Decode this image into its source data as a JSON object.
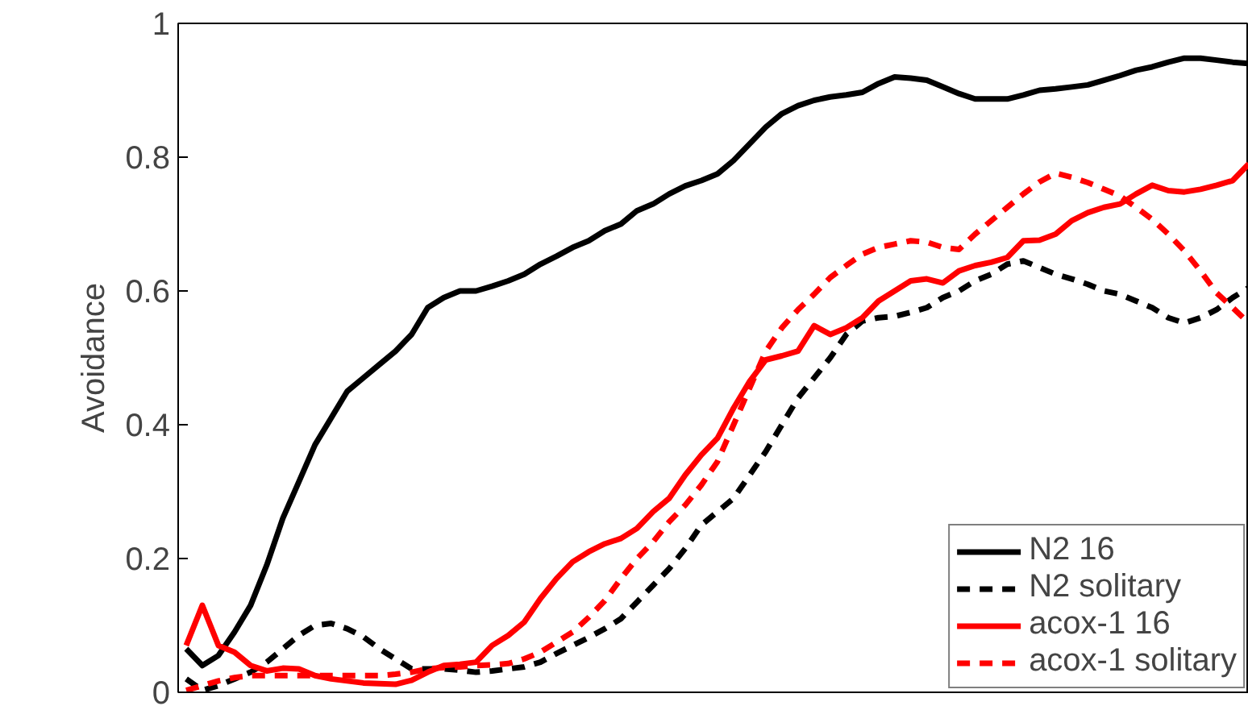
{
  "chart_data": {
    "type": "line",
    "ylabel": "Avoidance",
    "ylim": [
      0,
      1
    ],
    "yticks": [
      0,
      0.2,
      0.4,
      0.6,
      0.8,
      1
    ],
    "grid": false,
    "legend": "bottom right",
    "categories": [
      null,
      null,
      null,
      null,
      null,
      null,
      null,
      null,
      null,
      null,
      null,
      null,
      null,
      null,
      null,
      null,
      null,
      null,
      null,
      null,
      null,
      null,
      null,
      null,
      null,
      null,
      null,
      null,
      null,
      null,
      null,
      null,
      null,
      null,
      null,
      null,
      null,
      null,
      null,
      null,
      null,
      null,
      null,
      null,
      null,
      null,
      null,
      null,
      null,
      null,
      null,
      null,
      null,
      null,
      null,
      null,
      null,
      null,
      null,
      null,
      null,
      null,
      null,
      null,
      null,
      null,
      null
    ],
    "series": [
      {
        "name": "N2 16",
        "color": "#000000",
        "line_style": "solid",
        "values": [
          0.065,
          0.04,
          0.055,
          0.09,
          0.13,
          0.19,
          0.26,
          0.315,
          0.37,
          0.41,
          0.45,
          0.47,
          0.49,
          0.51,
          0.535,
          0.575,
          0.59,
          0.6,
          0.6,
          0.607,
          0.615,
          0.625,
          0.64,
          0.652,
          0.665,
          0.675,
          0.69,
          0.7,
          0.72,
          0.73,
          0.745,
          0.757,
          0.765,
          0.775,
          0.795,
          0.82,
          0.845,
          0.865,
          0.877,
          0.885,
          0.89,
          0.893,
          0.897,
          0.91,
          0.92,
          0.918,
          0.915,
          0.905,
          0.895,
          0.887,
          0.887,
          0.887,
          0.893,
          0.9,
          0.902,
          0.905,
          0.908,
          0.915,
          0.922,
          0.93,
          0.935,
          0.942,
          0.948,
          0.948,
          0.945,
          0.942,
          0.94
        ]
      },
      {
        "name": "N2 solitary",
        "color": "#000000",
        "line_style": "dashed",
        "values": [
          0.02,
          0.003,
          0.01,
          0.02,
          0.03,
          0.045,
          0.065,
          0.085,
          0.1,
          0.103,
          0.095,
          0.083,
          0.065,
          0.05,
          0.035,
          0.035,
          0.035,
          0.033,
          0.03,
          0.032,
          0.035,
          0.038,
          0.045,
          0.058,
          0.07,
          0.082,
          0.095,
          0.11,
          0.135,
          0.16,
          0.185,
          0.215,
          0.25,
          0.27,
          0.29,
          0.325,
          0.36,
          0.4,
          0.44,
          0.47,
          0.5,
          0.535,
          0.555,
          0.56,
          0.562,
          0.568,
          0.575,
          0.59,
          0.6,
          0.615,
          0.625,
          0.64,
          0.645,
          0.635,
          0.625,
          0.618,
          0.61,
          0.6,
          0.595,
          0.585,
          0.575,
          0.56,
          0.552,
          0.56,
          0.572,
          0.59,
          0.605
        ]
      },
      {
        "name": "acox-1 16",
        "color": "#ff0000",
        "line_style": "solid",
        "values": [
          0.07,
          0.13,
          0.07,
          0.06,
          0.04,
          0.032,
          0.036,
          0.035,
          0.025,
          0.02,
          0.017,
          0.014,
          0.013,
          0.012,
          0.018,
          0.03,
          0.04,
          0.042,
          0.045,
          0.07,
          0.085,
          0.105,
          0.14,
          0.17,
          0.195,
          0.21,
          0.222,
          0.23,
          0.245,
          0.27,
          0.29,
          0.325,
          0.355,
          0.38,
          0.425,
          0.465,
          0.497,
          0.503,
          0.51,
          0.548,
          0.535,
          0.545,
          0.56,
          0.585,
          0.6,
          0.615,
          0.618,
          0.612,
          0.63,
          0.638,
          0.643,
          0.65,
          0.675,
          0.676,
          0.685,
          0.705,
          0.717,
          0.725,
          0.73,
          0.745,
          0.758,
          0.75,
          0.748,
          0.752,
          0.758,
          0.765,
          0.79
        ]
      },
      {
        "name": "acox-1 solitary",
        "color": "#ff0000",
        "line_style": "dashed",
        "values": [
          0.003,
          0.01,
          0.017,
          0.022,
          0.025,
          0.025,
          0.025,
          0.025,
          0.025,
          0.025,
          0.025,
          0.025,
          0.025,
          0.027,
          0.03,
          0.035,
          0.037,
          0.038,
          0.04,
          0.041,
          0.043,
          0.05,
          0.06,
          0.075,
          0.09,
          0.112,
          0.137,
          0.17,
          0.2,
          0.225,
          0.255,
          0.28,
          0.31,
          0.345,
          0.4,
          0.455,
          0.51,
          0.545,
          0.572,
          0.595,
          0.62,
          0.638,
          0.655,
          0.665,
          0.67,
          0.675,
          0.673,
          0.665,
          0.662,
          0.685,
          0.705,
          0.725,
          0.745,
          0.763,
          0.776,
          0.77,
          0.762,
          0.752,
          0.742,
          0.725,
          0.707,
          0.685,
          0.66,
          0.63,
          0.597,
          0.575,
          0.552
        ]
      }
    ]
  }
}
